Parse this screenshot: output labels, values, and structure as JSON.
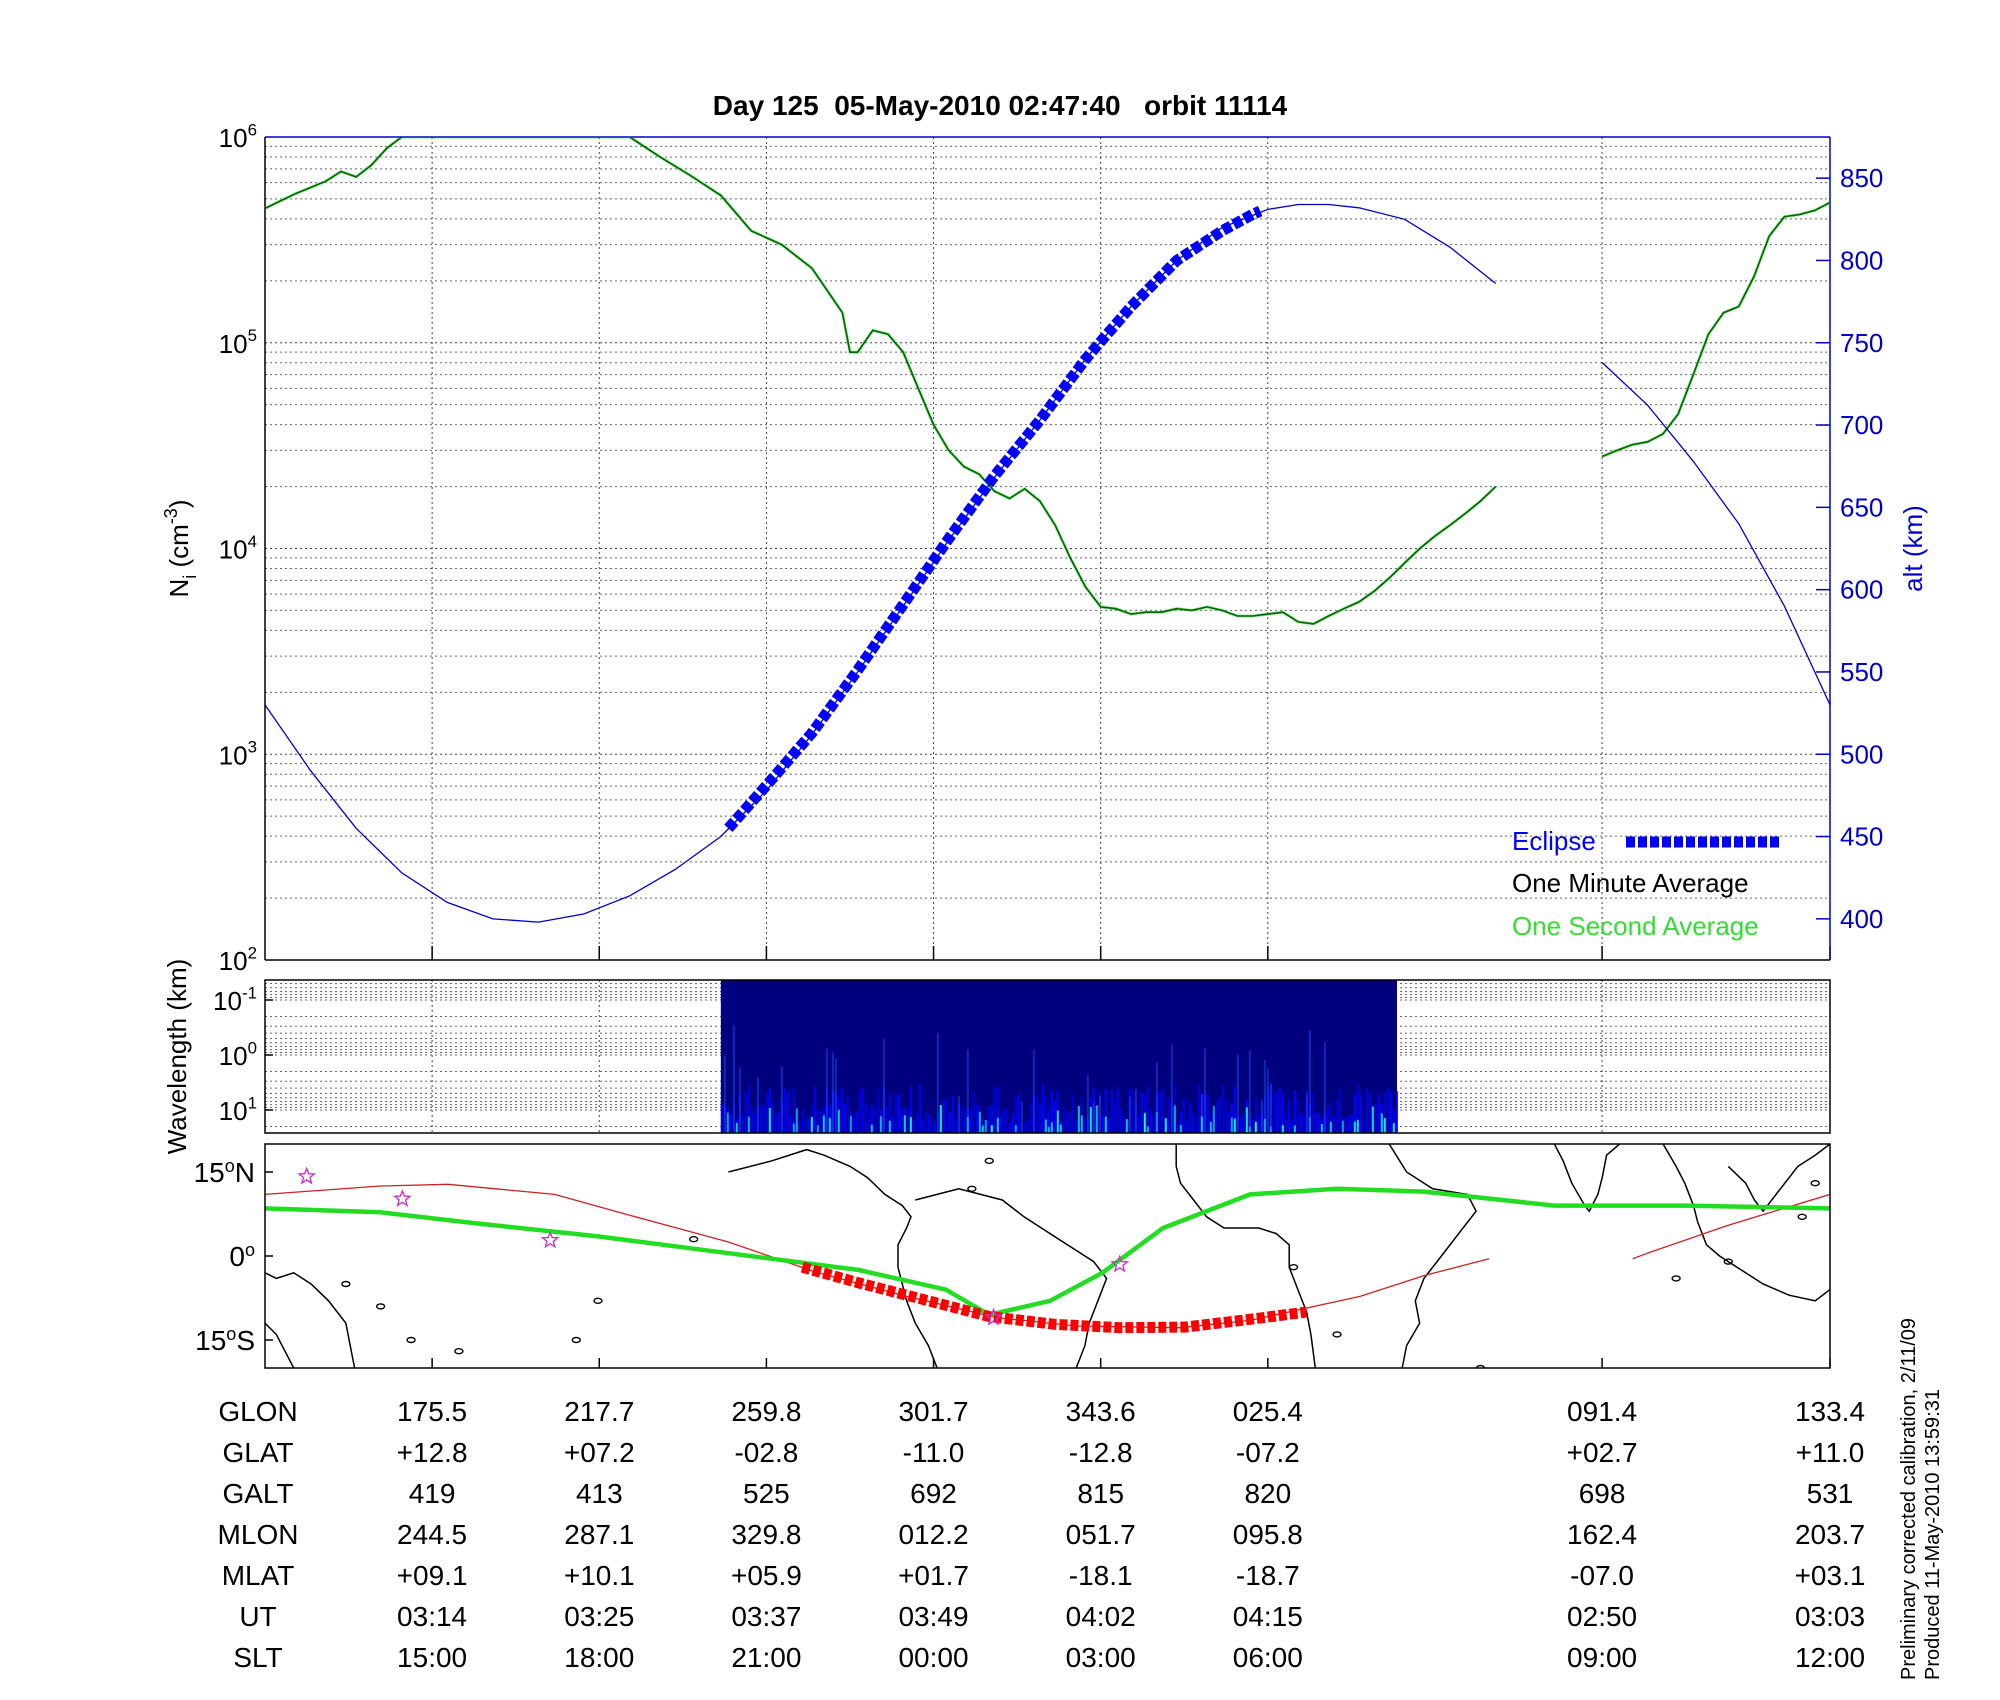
{
  "title": "Day 125  05-May-2010 02:47:40   orbit 11114",
  "colors": {
    "density_minute": "#006400",
    "density_second": "#33dd33",
    "altitude": "#0000cc",
    "eclipse": "#0000ff",
    "axis_right": "#0000cc",
    "track_orbit": "#cc2222",
    "track_eclipse": "#ff0000",
    "magnetic_equator": "#22dd22",
    "stars": "#cc33cc",
    "coast": "#000000"
  },
  "chart_data": [
    {
      "type": "line",
      "panel": "density",
      "ylabel": "N_i (cm^-3)",
      "ylabel_right": "alt (km)",
      "yscale": "log",
      "ylim": [
        100,
        1000000
      ],
      "yticks": [
        {
          "base": "10",
          "exp": "2"
        },
        {
          "base": "10",
          "exp": "3"
        },
        {
          "base": "10",
          "exp": "4"
        },
        {
          "base": "10",
          "exp": "5"
        },
        {
          "base": "10",
          "exp": "6"
        }
      ],
      "ylim_right": [
        375,
        875
      ],
      "yticks_right": [
        "400",
        "450",
        "500",
        "550",
        "600",
        "650",
        "700",
        "750",
        "800",
        "850"
      ],
      "x_range_minutes": [
        0,
        103
      ],
      "grid": true,
      "legend_position": "lower-right",
      "legend": {
        "eclipse": "Eclipse",
        "minute": "One Minute Average",
        "second": "One Second Average"
      },
      "series": [
        {
          "name": "One Minute Average",
          "segments": [
            [
              [
                0,
                450000
              ],
              [
                2,
                530000
              ],
              [
                4,
                610000
              ],
              [
                5,
                680000
              ],
              [
                6,
                640000
              ],
              [
                7,
                730000
              ],
              [
                8,
                880000
              ],
              [
                9,
                1000000
              ],
              [
                24,
                1000000
              ],
              [
                26,
                800000
              ],
              [
                28,
                650000
              ],
              [
                30,
                520000
              ],
              [
                32,
                350000
              ],
              [
                34,
                300000
              ],
              [
                36,
                230000
              ],
              [
                38,
                140000
              ],
              [
                38.5,
                90000
              ],
              [
                39,
                90000
              ],
              [
                40,
                115000
              ],
              [
                41,
                110000
              ],
              [
                42,
                90000
              ],
              [
                43,
                60000
              ],
              [
                44,
                40000
              ],
              [
                45,
                30000
              ],
              [
                46,
                25000
              ],
              [
                47,
                23000
              ],
              [
                48,
                19000
              ],
              [
                49,
                17500
              ],
              [
                50,
                19500
              ],
              [
                51,
                17000
              ],
              [
                52,
                13000
              ],
              [
                53,
                9000
              ],
              [
                54,
                6500
              ],
              [
                55,
                5200
              ],
              [
                56,
                5100
              ],
              [
                57,
                4800
              ],
              [
                58,
                4900
              ],
              [
                59,
                4900
              ],
              [
                60,
                5100
              ],
              [
                61,
                5000
              ],
              [
                62,
                5200
              ],
              [
                63,
                5000
              ],
              [
                64,
                4700
              ],
              [
                65,
                4700
              ],
              [
                66,
                4800
              ],
              [
                67,
                4900
              ],
              [
                68,
                4400
              ],
              [
                69,
                4300
              ],
              [
                70,
                4700
              ],
              [
                71,
                5100
              ],
              [
                72,
                5500
              ],
              [
                73,
                6200
              ],
              [
                74,
                7200
              ],
              [
                75,
                8500
              ],
              [
                76,
                10000
              ],
              [
                77,
                11500
              ],
              [
                78,
                13000
              ],
              [
                79,
                14800
              ],
              [
                80,
                17000
              ],
              [
                81,
                20000
              ]
            ],
            [
              [
                88,
                28000
              ],
              [
                89,
                30000
              ],
              [
                90,
                32000
              ],
              [
                91,
                33000
              ],
              [
                92,
                36000
              ],
              [
                93,
                45000
              ],
              [
                94,
                70000
              ],
              [
                95,
                110000
              ],
              [
                96,
                140000
              ],
              [
                97,
                150000
              ],
              [
                98,
                210000
              ],
              [
                99,
                330000
              ],
              [
                100,
                410000
              ],
              [
                101,
                420000
              ],
              [
                102,
                440000
              ],
              [
                103,
                480000
              ]
            ]
          ]
        },
        {
          "name": "altitude",
          "unit": "km",
          "segments": [
            [
              [
                0,
                530
              ],
              [
                3,
                490
              ],
              [
                6,
                455
              ],
              [
                9,
                428
              ],
              [
                12,
                410
              ],
              [
                15,
                400
              ],
              [
                18,
                398
              ],
              [
                21,
                403
              ],
              [
                24,
                414
              ],
              [
                27,
                430
              ],
              [
                30,
                450
              ],
              [
                33,
                478
              ],
              [
                36,
                512
              ],
              [
                39,
                550
              ],
              [
                42,
                590
              ],
              [
                45,
                630
              ],
              [
                48,
                668
              ],
              [
                51,
                703
              ],
              [
                54,
                740
              ],
              [
                57,
                772
              ],
              [
                60,
                800
              ],
              [
                63,
                820
              ],
              [
                66,
                831
              ],
              [
                68,
                834
              ],
              [
                70,
                834
              ],
              [
                72,
                832
              ],
              [
                75,
                825
              ],
              [
                78,
                808
              ],
              [
                81,
                786
              ]
            ],
            [
              [
                88,
                738
              ],
              [
                91,
                712
              ],
              [
                94,
                678
              ],
              [
                97,
                640
              ],
              [
                100,
                590
              ],
              [
                103,
                530
              ]
            ]
          ]
        },
        {
          "name": "Eclipse",
          "points": [
            [
              30.5,
              455
            ],
            [
              33,
              481
            ],
            [
              36,
              513
            ],
            [
              39,
              551
            ],
            [
              42,
              591
            ],
            [
              45,
              631
            ],
            [
              48,
              669
            ],
            [
              51,
              703
            ],
            [
              54,
              740
            ],
            [
              57,
              772
            ],
            [
              60,
              800
            ],
            [
              63,
              818
            ],
            [
              65,
              828
            ],
            [
              65.5,
              830
            ]
          ]
        }
      ]
    },
    {
      "type": "heatmap",
      "panel": "wavelength",
      "ylabel": "Wavelength (km)",
      "yscale": "log",
      "yticks": [
        {
          "base": "10",
          "exp": "-1"
        },
        {
          "base": "10",
          "exp": "0"
        },
        {
          "base": "10",
          "exp": "1"
        }
      ],
      "x_range_minutes": [
        30,
        74.5
      ],
      "colormap": "jet",
      "description_colors": [
        "#00007f",
        "#0000ff",
        "#00ffff"
      ]
    },
    {
      "type": "line",
      "panel": "map",
      "xlim_glon_shifted": [
        133.4,
        493.4
      ],
      "ylim_lat": [
        -20,
        20
      ],
      "yticks": [
        {
          "value": "15",
          "hemi": "N"
        },
        {
          "value": "0",
          "hemi": ""
        },
        {
          "value": "15",
          "hemi": "S"
        }
      ],
      "series": [
        {
          "name": "orbit track",
          "segments": [
            [
              [
                133.4,
                11.0
              ],
              [
                160,
                12.5
              ],
              [
                175.5,
                12.8
              ],
              [
                200,
                11.0
              ],
              [
                217.7,
                7.2
              ],
              [
                240,
                2.5
              ],
              [
                259.8,
                -2.8
              ],
              [
                280,
                -7.0
              ],
              [
                301.7,
                -11.0
              ],
              [
                320,
                -12.5
              ],
              [
                343.6,
                -12.8
              ],
              [
                360,
                -11.5
              ],
              [
                385.4,
                -7.2
              ],
              [
                400,
                -3.5
              ],
              [
                415,
                -0.5
              ]
            ],
            [
              [
                448,
                -0.5
              ],
              [
                451.4,
                0.5
              ],
              [
                470,
                5.5
              ],
              [
                493.4,
                11.0
              ]
            ]
          ]
        },
        {
          "name": "eclipse track",
          "points": [
            [
              257,
              -2.0
            ],
            [
              270,
              -4.8
            ],
            [
              285,
              -7.8
            ],
            [
              300,
              -10.8
            ],
            [
              315,
              -12.2
            ],
            [
              330,
              -12.8
            ],
            [
              345,
              -12.7
            ],
            [
              360,
              -11.3
            ],
            [
              373,
              -10.0
            ]
          ]
        },
        {
          "name": "magnetic equator",
          "points": [
            [
              133.4,
              8.5
            ],
            [
              160,
              7.8
            ],
            [
              180,
              6.0
            ],
            [
              210,
              3.5
            ],
            [
              240,
              0.5
            ],
            [
              270,
              -2.5
            ],
            [
              290,
              -6.0
            ],
            [
              300,
              -10.5
            ],
            [
              314,
              -8.0
            ],
            [
              326,
              -3.0
            ],
            [
              340,
              5.0
            ],
            [
              360,
              11.0
            ],
            [
              380,
              12.0
            ],
            [
              400,
              11.5
            ],
            [
              430,
              9.0
            ],
            [
              460,
              9.0
            ],
            [
              493.4,
              8.5
            ]
          ]
        },
        {
          "name": "stars",
          "points": [
            [
              143,
              14.2
            ],
            [
              165,
              10.2
            ],
            [
              199,
              2.8
            ],
            [
              301,
              -11.0
            ],
            [
              330,
              -1.5
            ]
          ]
        }
      ]
    }
  ],
  "table": {
    "labels": [
      "GLON",
      "GLAT",
      "GALT",
      "MLON",
      "MLAT",
      "UT",
      "SLT"
    ],
    "columns": [
      [
        "175.5",
        "+12.8",
        "419",
        "244.5",
        "+09.1",
        "03:14",
        "15:00"
      ],
      [
        "217.7",
        "+07.2",
        "413",
        "287.1",
        "+10.1",
        "03:25",
        "18:00"
      ],
      [
        "259.8",
        "-02.8",
        "525",
        "329.8",
        "+05.9",
        "03:37",
        "21:00"
      ],
      [
        "301.7",
        "-11.0",
        "692",
        "012.2",
        "+01.7",
        "03:49",
        "00:00"
      ],
      [
        "343.6",
        "-12.8",
        "815",
        "051.7",
        "-18.1",
        "04:02",
        "03:00"
      ],
      [
        "025.4",
        "-07.2",
        "820",
        "095.8",
        "-18.7",
        "04:15",
        "06:00"
      ],
      [
        "091.4",
        "+02.7",
        "698",
        "162.4",
        "-07.0",
        "02:50",
        "09:00"
      ],
      [
        "133.4",
        "+11.0",
        "531",
        "203.7",
        "+03.1",
        "03:03",
        "12:00"
      ]
    ]
  },
  "notes": {
    "line1": "Preliminary corrected calibration, 2/11/09",
    "line2": "Produced 11-May-2010 13:59:31"
  }
}
